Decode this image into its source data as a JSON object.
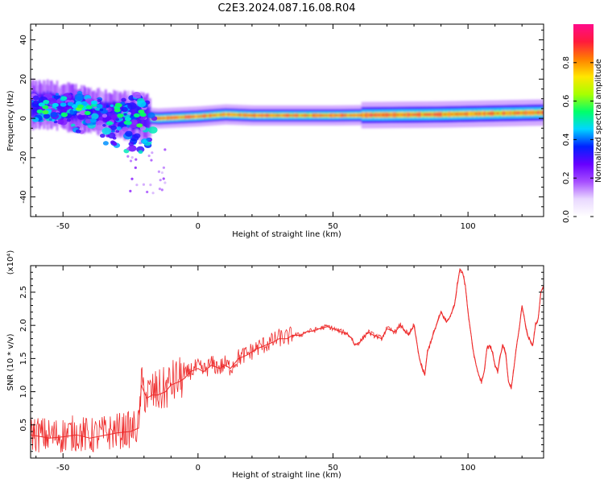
{
  "figure": {
    "title": "C2E3.2024.087.16.08.R04"
  },
  "chart_data": [
    {
      "type": "heatmap",
      "xlabel": "Height of straight line (km)",
      "ylabel": "Frequency (Hz)",
      "xlim": [
        -62,
        128
      ],
      "ylim": [
        -50,
        48
      ],
      "xticks": [
        -50,
        0,
        50,
        100
      ],
      "yticks": [
        -40,
        -20,
        0,
        20,
        40
      ],
      "colorbar": {
        "label": "Normalized spectral amplitude",
        "range": [
          0,
          1
        ],
        "ticks": [
          0.0,
          0.2,
          0.4,
          0.6,
          0.8
        ],
        "colormap": [
          "#ffffff",
          "#e9d8ff",
          "#a64dff",
          "#6600ff",
          "#0022ff",
          "#00d6ff",
          "#00ff6a",
          "#a8ff00",
          "#ffe600",
          "#ff7f00",
          "#ff1a3c",
          "#ff0b8a"
        ]
      },
      "band": {
        "center_hz": [
          {
            "x": -55,
            "f": 7
          },
          {
            "x": -45,
            "f": 5
          },
          {
            "x": -35,
            "f": 3
          },
          {
            "x": -25,
            "f": 1
          },
          {
            "x": -15,
            "f": 0
          },
          {
            "x": 0,
            "f": 1
          },
          {
            "x": 10,
            "f": 2
          },
          {
            "x": 20,
            "f": 1.5
          },
          {
            "x": 50,
            "f": 1.5
          },
          {
            "x": 90,
            "f": 2
          },
          {
            "x": 128,
            "f": 3
          }
        ]
      }
    },
    {
      "type": "line",
      "xlabel": "Height of straight line (km)",
      "ylabel": "SNR (10 * v/v)",
      "scale_label": "(x10⁴)",
      "xlim": [
        -62,
        128
      ],
      "ylim": [
        0,
        2.9
      ],
      "xticks": [
        -50,
        0,
        50,
        100
      ],
      "yticks": [
        0.5,
        1.0,
        1.5,
        2.0,
        2.5
      ],
      "line_color": "#ee2a2a",
      "series": [
        {
          "x": [
            -62,
            -55,
            -50,
            -45,
            -40,
            -35,
            -30,
            -25,
            -22,
            -21,
            -19,
            -17,
            -15,
            -12,
            -10,
            -7,
            -5,
            -3,
            0,
            2,
            5,
            8,
            10,
            12,
            15,
            18,
            20,
            22,
            25,
            28,
            30,
            33,
            35,
            38,
            40,
            43,
            45,
            48,
            50,
            53,
            55,
            57,
            58,
            60,
            63,
            65,
            68,
            70,
            73,
            75,
            78,
            80,
            82,
            83,
            84,
            85,
            87,
            90,
            92,
            93,
            95,
            96,
            97,
            98,
            99,
            100,
            101,
            102,
            103,
            104,
            105,
            106,
            107,
            108,
            109,
            110,
            111,
            112,
            113,
            114,
            115,
            116,
            117,
            118,
            119,
            120,
            122,
            124,
            125,
            126,
            127,
            128
          ],
          "y": [
            0.35,
            0.3,
            0.32,
            0.35,
            0.3,
            0.34,
            0.38,
            0.4,
            0.45,
            1.1,
            0.9,
            0.95,
            0.95,
            1.0,
            1.1,
            1.15,
            1.2,
            1.3,
            1.35,
            1.3,
            1.4,
            1.35,
            1.4,
            1.35,
            1.5,
            1.55,
            1.6,
            1.65,
            1.7,
            1.75,
            1.8,
            1.8,
            1.85,
            1.85,
            1.9,
            1.92,
            1.95,
            1.98,
            1.95,
            1.9,
            1.88,
            1.8,
            1.7,
            1.75,
            1.9,
            1.85,
            1.8,
            1.95,
            1.9,
            2.0,
            1.85,
            2.0,
            1.5,
            1.35,
            1.25,
            1.6,
            1.85,
            2.2,
            2.05,
            2.1,
            2.3,
            2.6,
            2.85,
            2.8,
            2.6,
            2.2,
            1.9,
            1.6,
            1.4,
            1.25,
            1.15,
            1.3,
            1.65,
            1.7,
            1.6,
            1.4,
            1.3,
            1.55,
            1.7,
            1.55,
            1.15,
            1.05,
            1.35,
            1.7,
            1.95,
            2.3,
            1.85,
            1.7,
            2.0,
            2.1,
            2.5,
            2.6
          ]
        }
      ]
    }
  ]
}
